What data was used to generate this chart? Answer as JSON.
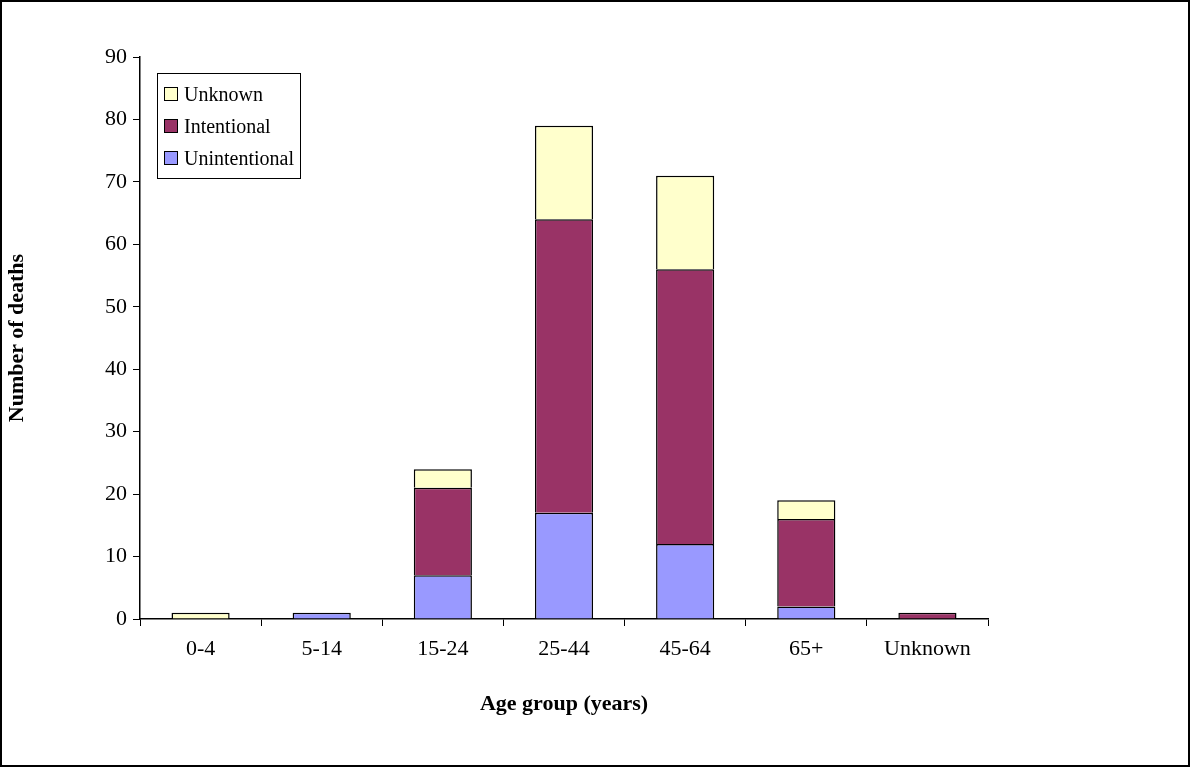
{
  "chart_data": {
    "type": "bar",
    "stacked": true,
    "xlabel": "Age group (years)",
    "ylabel": "Number of deaths",
    "categories": [
      "0-4",
      "5-14",
      "15-24",
      "25-44",
      "45-64",
      "65+",
      "Unknown"
    ],
    "series": [
      {
        "name": "Unintentional",
        "color": "#9999ff",
        "values": [
          0,
          1,
          7,
          17,
          12,
          2,
          0
        ]
      },
      {
        "name": "Intentional",
        "color": "#993366",
        "values": [
          0,
          0,
          14,
          47,
          44,
          14,
          1
        ]
      },
      {
        "name": "Unknown",
        "color": "#ffffcc",
        "values": [
          1,
          0,
          3,
          15,
          15,
          3,
          0
        ]
      }
    ],
    "ylim": [
      0,
      90
    ],
    "yticks": [
      0,
      10,
      20,
      30,
      40,
      50,
      60,
      70,
      80,
      90
    ],
    "legend": "top left"
  }
}
